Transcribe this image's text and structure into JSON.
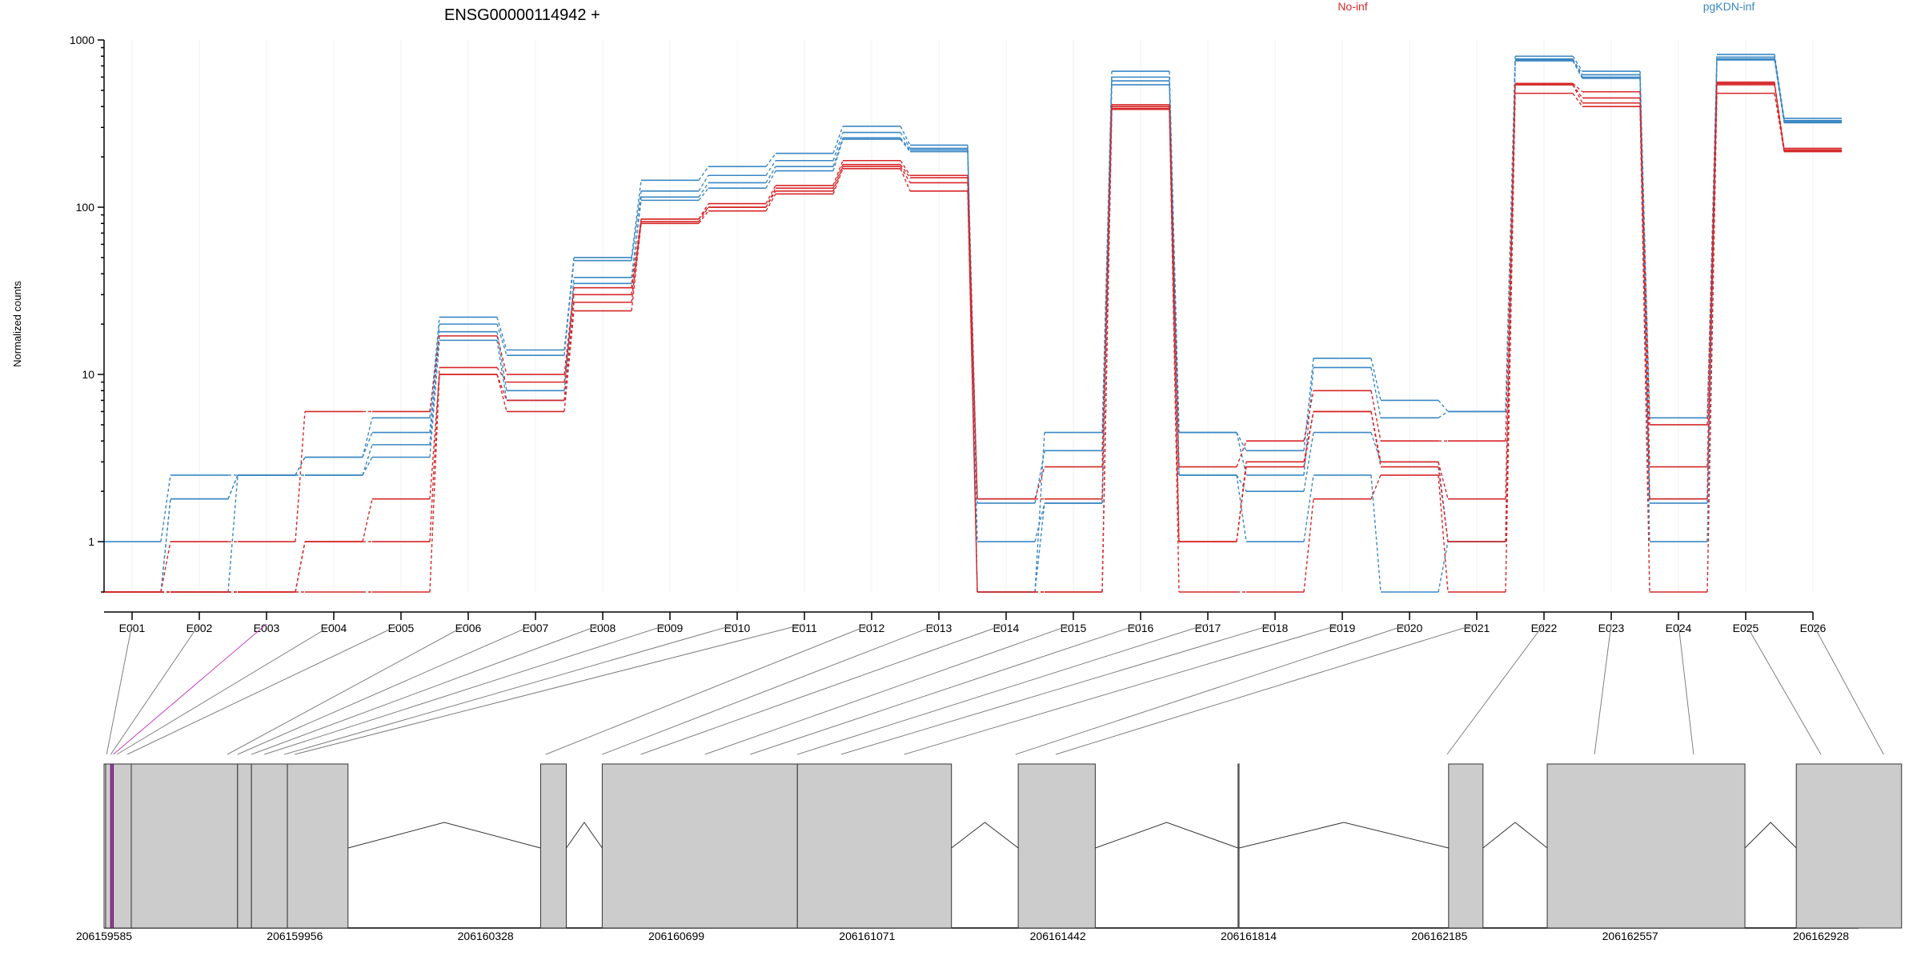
{
  "chart_data": {
    "type": "line",
    "title": "ENSG00000114942 +",
    "ylabel": "Normalized counts",
    "y_scale": "log",
    "ylim": [
      0.5,
      1000
    ],
    "y_ticks": [
      {
        "v": 1,
        "label": "1"
      },
      {
        "v": 10,
        "label": "10"
      },
      {
        "v": 100,
        "label": "100"
      },
      {
        "v": 1000,
        "label": "1000"
      }
    ],
    "categories": [
      "E001",
      "E002",
      "E003",
      "E004",
      "E005",
      "E006",
      "E007",
      "E008",
      "E009",
      "E010",
      "E011",
      "E012",
      "E013",
      "E014",
      "E015",
      "E016",
      "E017",
      "E018",
      "E019",
      "E020",
      "E021",
      "E022",
      "E023",
      "E024",
      "E025",
      "E026"
    ],
    "legend": [
      {
        "label": "No-inf",
        "color": "#d62728"
      },
      {
        "label": "pgKDN-inf",
        "color": "#3a87c4"
      }
    ],
    "series": [
      {
        "group": "pgKDN-inf",
        "values": [
          1,
          2.5,
          2.5,
          3.2,
          5.5,
          22,
          14,
          50,
          145,
          175,
          210,
          305,
          235,
          0.5,
          4.5,
          650,
          4.5,
          3.5,
          12.5,
          7,
          6,
          800,
          650,
          5.5,
          820,
          340
        ]
      },
      {
        "group": "pgKDN-inf",
        "values": [
          0.5,
          1.8,
          2.5,
          3.2,
          4.5,
          20,
          13,
          48,
          125,
          155,
          190,
          280,
          225,
          1.7,
          3.5,
          600,
          4.5,
          2.5,
          11,
          5.5,
          6,
          770,
          620,
          1.8,
          790,
          330
        ]
      },
      {
        "group": "pgKDN-inf",
        "values": [
          0.5,
          1.8,
          2.5,
          2.5,
          3.8,
          18,
          8,
          35,
          115,
          140,
          175,
          260,
          220,
          1,
          1.7,
          570,
          2.5,
          2,
          4.5,
          3,
          1,
          760,
          600,
          1.7,
          770,
          325
        ]
      },
      {
        "group": "pgKDN-inf",
        "values": [
          0.5,
          0.5,
          2.5,
          2.5,
          3.2,
          16,
          7,
          38,
          110,
          130,
          165,
          255,
          215,
          0.5,
          1.7,
          540,
          2.5,
          1,
          2.5,
          0.5,
          1,
          750,
          590,
          1,
          760,
          320
        ]
      },
      {
        "group": "No-inf",
        "values": [
          0.5,
          1,
          1,
          6,
          6,
          17,
          10,
          33,
          85,
          105,
          135,
          190,
          155,
          1.8,
          2.8,
          410,
          2.8,
          4,
          8,
          4,
          4,
          550,
          490,
          5,
          560,
          225
        ]
      },
      {
        "group": "No-inf",
        "values": [
          0.5,
          0.5,
          0.5,
          1,
          1,
          11,
          9,
          30,
          85,
          100,
          130,
          180,
          150,
          1.8,
          1.8,
          400,
          1,
          3,
          6,
          3,
          1.8,
          540,
          450,
          1.8,
          550,
          220
        ]
      },
      {
        "group": "No-inf",
        "values": [
          0.5,
          0.5,
          0.5,
          1,
          1.8,
          10,
          7,
          27,
          82,
          100,
          125,
          175,
          140,
          0.5,
          0.5,
          390,
          1,
          2.8,
          6,
          2.8,
          1,
          540,
          420,
          2.8,
          540,
          218
        ]
      },
      {
        "group": "No-inf",
        "values": [
          0.5,
          0.5,
          0.5,
          0.5,
          0.5,
          10,
          6,
          24,
          80,
          95,
          120,
          170,
          125,
          0.5,
          0.5,
          385,
          0.5,
          0.5,
          1.8,
          2.5,
          0.5,
          480,
          400,
          0.5,
          480,
          215
        ]
      }
    ],
    "genome_ticks": [
      "206159585",
      "206159956",
      "206160328",
      "206160699",
      "206161071",
      "206161442",
      "206161814",
      "206162185",
      "206162557",
      "206162928"
    ],
    "genome_start": 206159585,
    "genome_end": 206162928,
    "gene_blocks": [
      [
        206159585,
        206159588,
        "#ffffff"
      ],
      [
        206159588,
        206159598,
        "#cccccc"
      ],
      [
        206159598,
        206159603,
        "#cc22cc"
      ],
      [
        206159603,
        206159638,
        "#cccccc"
      ],
      [
        206159638,
        206159845,
        "#cccccc"
      ],
      [
        206159845,
        206159872,
        "#cccccc"
      ],
      [
        206159872,
        206159942,
        "#cccccc"
      ],
      [
        206159942,
        206160060,
        "#cccccc"
      ],
      [
        206160435,
        206160485,
        "#cccccc"
      ],
      [
        206160555,
        206160935,
        "#cccccc"
      ],
      [
        206160935,
        206161235,
        "#cccccc"
      ],
      [
        206161365,
        206161515,
        "#cccccc"
      ],
      [
        206161793,
        206161795,
        "#cccccc"
      ],
      [
        206162203,
        206162270,
        "#cccccc"
      ],
      [
        206162395,
        206162780,
        "#cccccc"
      ],
      [
        206162880,
        206163085,
        "#cccccc"
      ]
    ],
    "exon_positions": [
      206159590,
      206159598,
      206159603,
      206159610,
      206159630,
      206159825,
      206159845,
      206159872,
      206159897,
      206159936,
      206159956,
      206160445,
      206160555,
      206160630,
      206160755,
      206160843,
      206160935,
      206161020,
      206161143,
      206161360,
      206161438,
      206162200,
      206162487,
      206162680,
      206162928,
      206163050
    ],
    "highlight_connector": 2,
    "highlight_color": "#c040c0"
  }
}
